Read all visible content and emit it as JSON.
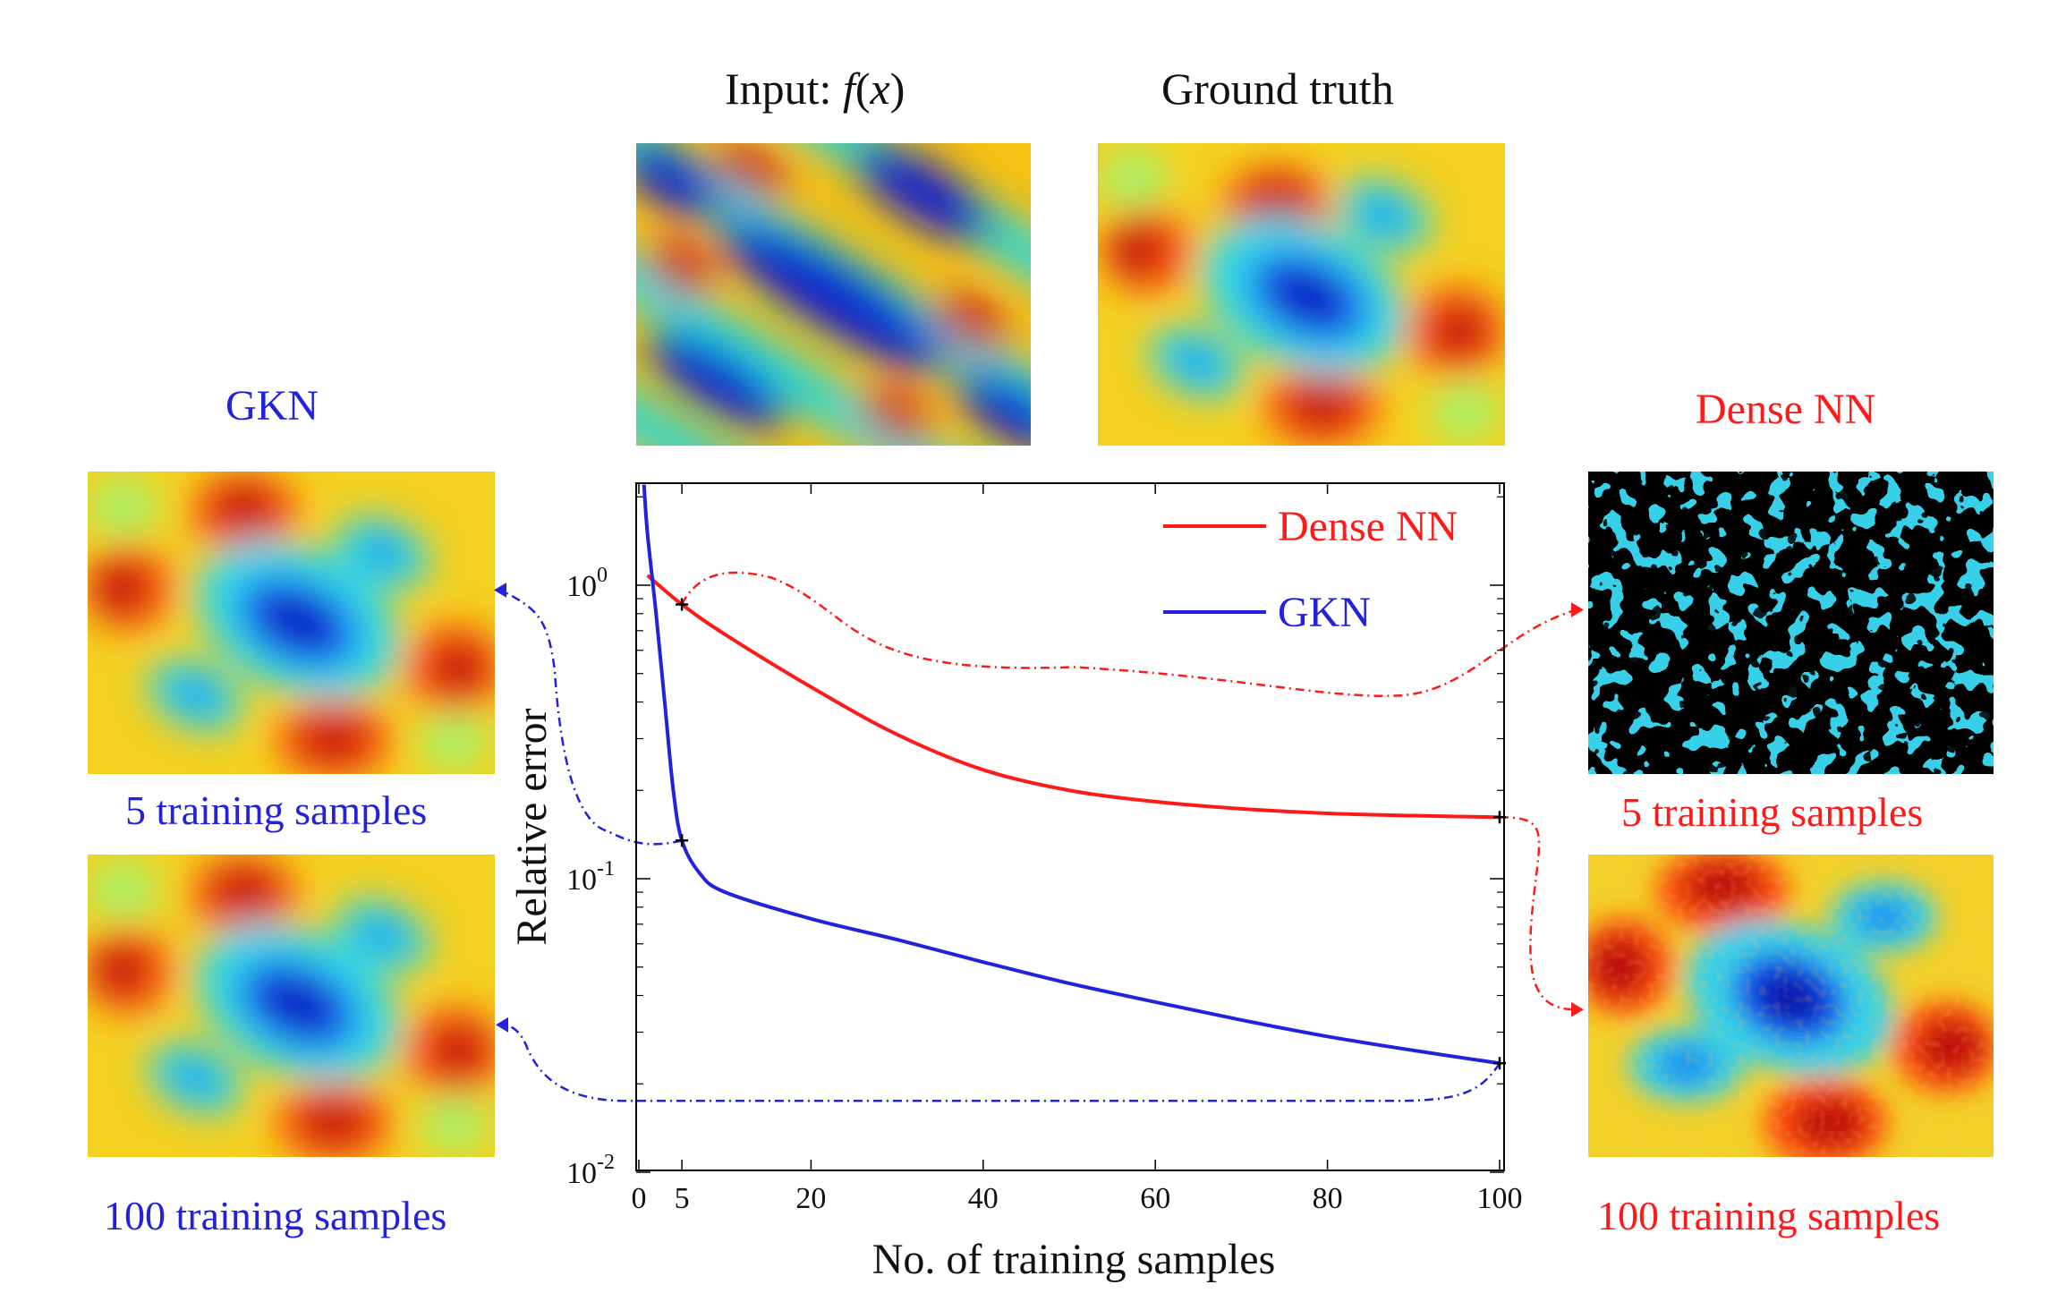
{
  "colors": {
    "dense": "#ff1a1a",
    "gkn": "#2222dd",
    "axis": "#000000"
  },
  "titles": {
    "input": "Input: f(x)",
    "input_prefix": "Input: ",
    "input_f": "f",
    "input_x": "x",
    "ground_truth": "Ground truth",
    "gkn": "GKN",
    "dense": "Dense NN",
    "gkn_5": "5 training samples",
    "gkn_100": "100 training samples",
    "dense_5": "5 training samples",
    "dense_100": "100 training samples"
  },
  "chart_data": {
    "type": "line",
    "xlabel": "No. of training samples",
    "ylabel": "Relative error",
    "yscale": "log",
    "xlim": [
      0,
      100
    ],
    "ylim": [
      0.01,
      2.3
    ],
    "xticks": [
      0,
      5,
      20,
      40,
      60,
      80,
      100
    ],
    "yticks": [
      {
        "base": "10",
        "exp": "0",
        "value": 1
      },
      {
        "base": "10",
        "exp": "-1",
        "value": 0.1
      },
      {
        "base": "10",
        "exp": "-2",
        "value": 0.01
      }
    ],
    "legend": "top-right",
    "grid": false,
    "series": [
      {
        "name": "Dense NN",
        "x": [
          1,
          5,
          10,
          20,
          30,
          40,
          50,
          60,
          70,
          80,
          90,
          100
        ],
        "y": [
          1.08,
          0.86,
          0.68,
          0.45,
          0.31,
          0.235,
          0.2,
          0.183,
          0.173,
          0.167,
          0.164,
          0.162
        ]
      },
      {
        "name": "GKN",
        "x": [
          0.6,
          1,
          2,
          3,
          4,
          5,
          7,
          10,
          20,
          30,
          40,
          50,
          60,
          70,
          80,
          90,
          100
        ],
        "y": [
          2.2,
          1.5,
          0.8,
          0.4,
          0.2,
          0.135,
          0.105,
          0.09,
          0.073,
          0.062,
          0.052,
          0.044,
          0.038,
          0.033,
          0.029,
          0.026,
          0.0235
        ]
      }
    ],
    "markers": [
      {
        "series": "Dense NN",
        "x": 5,
        "y": 0.86
      },
      {
        "series": "Dense NN",
        "x": 100,
        "y": 0.162
      },
      {
        "series": "GKN",
        "x": 5,
        "y": 0.135
      },
      {
        "series": "GKN",
        "x": 100,
        "y": 0.0235
      }
    ]
  }
}
